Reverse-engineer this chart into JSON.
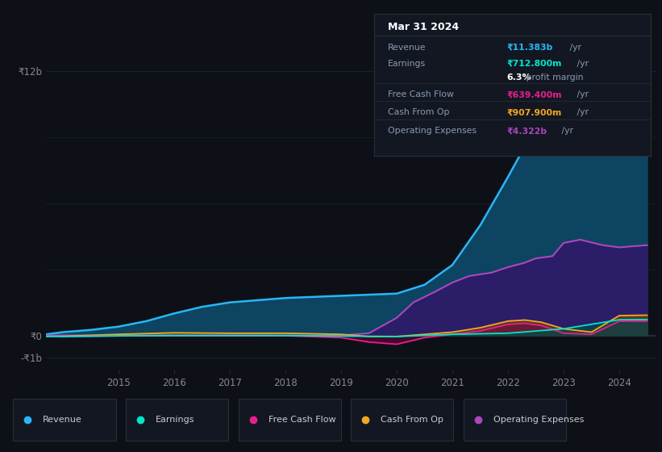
{
  "bg_color": "#0d1117",
  "plot_bg_color": "#0d1117",
  "grid_color": "#1e2333",
  "title_box": {
    "date": "Mar 31 2024",
    "bg": "#131722",
    "border": "#2a2e39",
    "rows": [
      {
        "label": "Revenue",
        "value": "₹11.383b",
        "unit": " /yr",
        "value_color": "#29b6f6"
      },
      {
        "label": "Earnings",
        "value": "₹712.800m",
        "unit": " /yr",
        "value_color": "#00e5cc"
      },
      {
        "label": "",
        "value": "6.3%",
        "unit": " profit margin",
        "value_color": "#ffffff"
      },
      {
        "label": "Free Cash Flow",
        "value": "₹639.400m",
        "unit": " /yr",
        "value_color": "#e91e8c"
      },
      {
        "label": "Cash From Op",
        "value": "₹907.900m",
        "unit": " /yr",
        "value_color": "#f5a623"
      },
      {
        "label": "Operating Expenses",
        "value": "₹4.322b",
        "unit": " /yr",
        "value_color": "#ab47bc"
      }
    ]
  },
  "yticks": [
    "₹12b",
    "₹0",
    "-₹1b"
  ],
  "ytick_values": [
    12000000000.0,
    0,
    -1000000000.0
  ],
  "ylim": [
    -1600000000.0,
    13800000000.0
  ],
  "xlim": [
    2013.7,
    2024.65
  ],
  "xtick_labels": [
    "2015",
    "2016",
    "2017",
    "2018",
    "2019",
    "2020",
    "2021",
    "2022",
    "2023",
    "2024"
  ],
  "xtick_values": [
    2015,
    2016,
    2017,
    2018,
    2019,
    2020,
    2021,
    2022,
    2023,
    2024
  ],
  "series": {
    "revenue": {
      "line_color": "#29b6f6",
      "fill_color": "#0d4a6b",
      "fill_alpha": 0.9,
      "label": "Revenue",
      "x": [
        2013.7,
        2014.0,
        2014.5,
        2015.0,
        2015.5,
        2016.0,
        2016.5,
        2017.0,
        2017.5,
        2018.0,
        2018.5,
        2019.0,
        2019.5,
        2020.0,
        2020.5,
        2021.0,
        2021.5,
        2022.0,
        2022.5,
        2023.0,
        2023.3,
        2023.6,
        2023.9,
        2024.0,
        2024.5
      ],
      "y": [
        50000000.0,
        150000000.0,
        250000000.0,
        400000000.0,
        650000000.0,
        1000000000.0,
        1300000000.0,
        1500000000.0,
        1600000000.0,
        1700000000.0,
        1750000000.0,
        1800000000.0,
        1850000000.0,
        1900000000.0,
        2300000000.0,
        3200000000.0,
        5000000000.0,
        7200000000.0,
        9500000000.0,
        11000000000.0,
        11383000000.0,
        11383000000.0,
        11200000000.0,
        11383000000.0,
        11400000000.0
      ]
    },
    "operating_expenses": {
      "line_color": "#ab47bc",
      "fill_color": "#2d1b69",
      "fill_alpha": 0.95,
      "label": "Operating Expenses",
      "x": [
        2013.7,
        2014.0,
        2015.0,
        2016.0,
        2017.0,
        2018.0,
        2019.0,
        2019.5,
        2020.0,
        2020.3,
        2020.7,
        2021.0,
        2021.3,
        2021.7,
        2022.0,
        2022.3,
        2022.5,
        2022.8,
        2023.0,
        2023.3,
        2023.7,
        2024.0,
        2024.5
      ],
      "y": [
        0,
        0,
        0,
        0,
        0,
        0,
        0,
        100000000.0,
        800000000.0,
        1500000000.0,
        2000000000.0,
        2400000000.0,
        2700000000.0,
        2850000000.0,
        3100000000.0,
        3300000000.0,
        3500000000.0,
        3600000000.0,
        4200000000.0,
        4350000000.0,
        4100000000.0,
        4000000000.0,
        4100000000.0
      ]
    },
    "cash_from_op": {
      "line_color": "#f5a623",
      "fill_color": "#7a4a00",
      "fill_alpha": 0.6,
      "label": "Cash From Op",
      "x": [
        2013.7,
        2014.0,
        2015.0,
        2016.0,
        2017.0,
        2018.0,
        2019.0,
        2019.5,
        2020.0,
        2020.5,
        2021.0,
        2021.5,
        2022.0,
        2022.3,
        2022.6,
        2023.0,
        2023.5,
        2024.0,
        2024.5
      ],
      "y": [
        -50000000.0,
        -40000000.0,
        50000000.0,
        120000000.0,
        100000000.0,
        100000000.0,
        50000000.0,
        -50000000.0,
        -50000000.0,
        50000000.0,
        150000000.0,
        350000000.0,
        650000000.0,
        700000000.0,
        600000000.0,
        300000000.0,
        150000000.0,
        900000000.0,
        920000000.0
      ]
    },
    "free_cash_flow": {
      "line_color": "#e91e8c",
      "fill_color": "#7a0040",
      "fill_alpha": 0.5,
      "label": "Free Cash Flow",
      "x": [
        2013.7,
        2014.0,
        2015.0,
        2016.0,
        2017.0,
        2018.0,
        2019.0,
        2019.5,
        2020.0,
        2020.5,
        2021.0,
        2021.5,
        2022.0,
        2022.3,
        2022.6,
        2023.0,
        2023.5,
        2024.0,
        2024.5
      ],
      "y": [
        -50000000.0,
        -60000000.0,
        -20000000.0,
        0.0,
        0.0,
        -10000000.0,
        -100000000.0,
        -300000000.0,
        -400000000.0,
        -100000000.0,
        50000000.0,
        200000000.0,
        500000000.0,
        550000000.0,
        450000000.0,
        100000000.0,
        50000000.0,
        640000000.0,
        650000000.0
      ]
    },
    "earnings": {
      "line_color": "#00e5cc",
      "fill_color": "#004d45",
      "fill_alpha": 0.7,
      "label": "Earnings",
      "x": [
        2013.7,
        2014.0,
        2015.0,
        2016.0,
        2017.0,
        2018.0,
        2019.0,
        2020.0,
        2021.0,
        2022.0,
        2023.0,
        2024.0,
        2024.5
      ],
      "y": [
        -40000000.0,
        -50000000.0,
        -20000000.0,
        -10000000.0,
        -10000000.0,
        -10000000.0,
        -30000000.0,
        -50000000.0,
        50000000.0,
        100000000.0,
        300000000.0,
        712000000.0,
        720000000.0
      ]
    }
  },
  "legend": [
    {
      "label": "Revenue",
      "color": "#29b6f6"
    },
    {
      "label": "Earnings",
      "color": "#00e5cc"
    },
    {
      "label": "Free Cash Flow",
      "color": "#e91e8c"
    },
    {
      "label": "Cash From Op",
      "color": "#f5a623"
    },
    {
      "label": "Operating Expenses",
      "color": "#ab47bc"
    }
  ],
  "legend_bg": "#131722",
  "legend_border": "#2a2e39"
}
